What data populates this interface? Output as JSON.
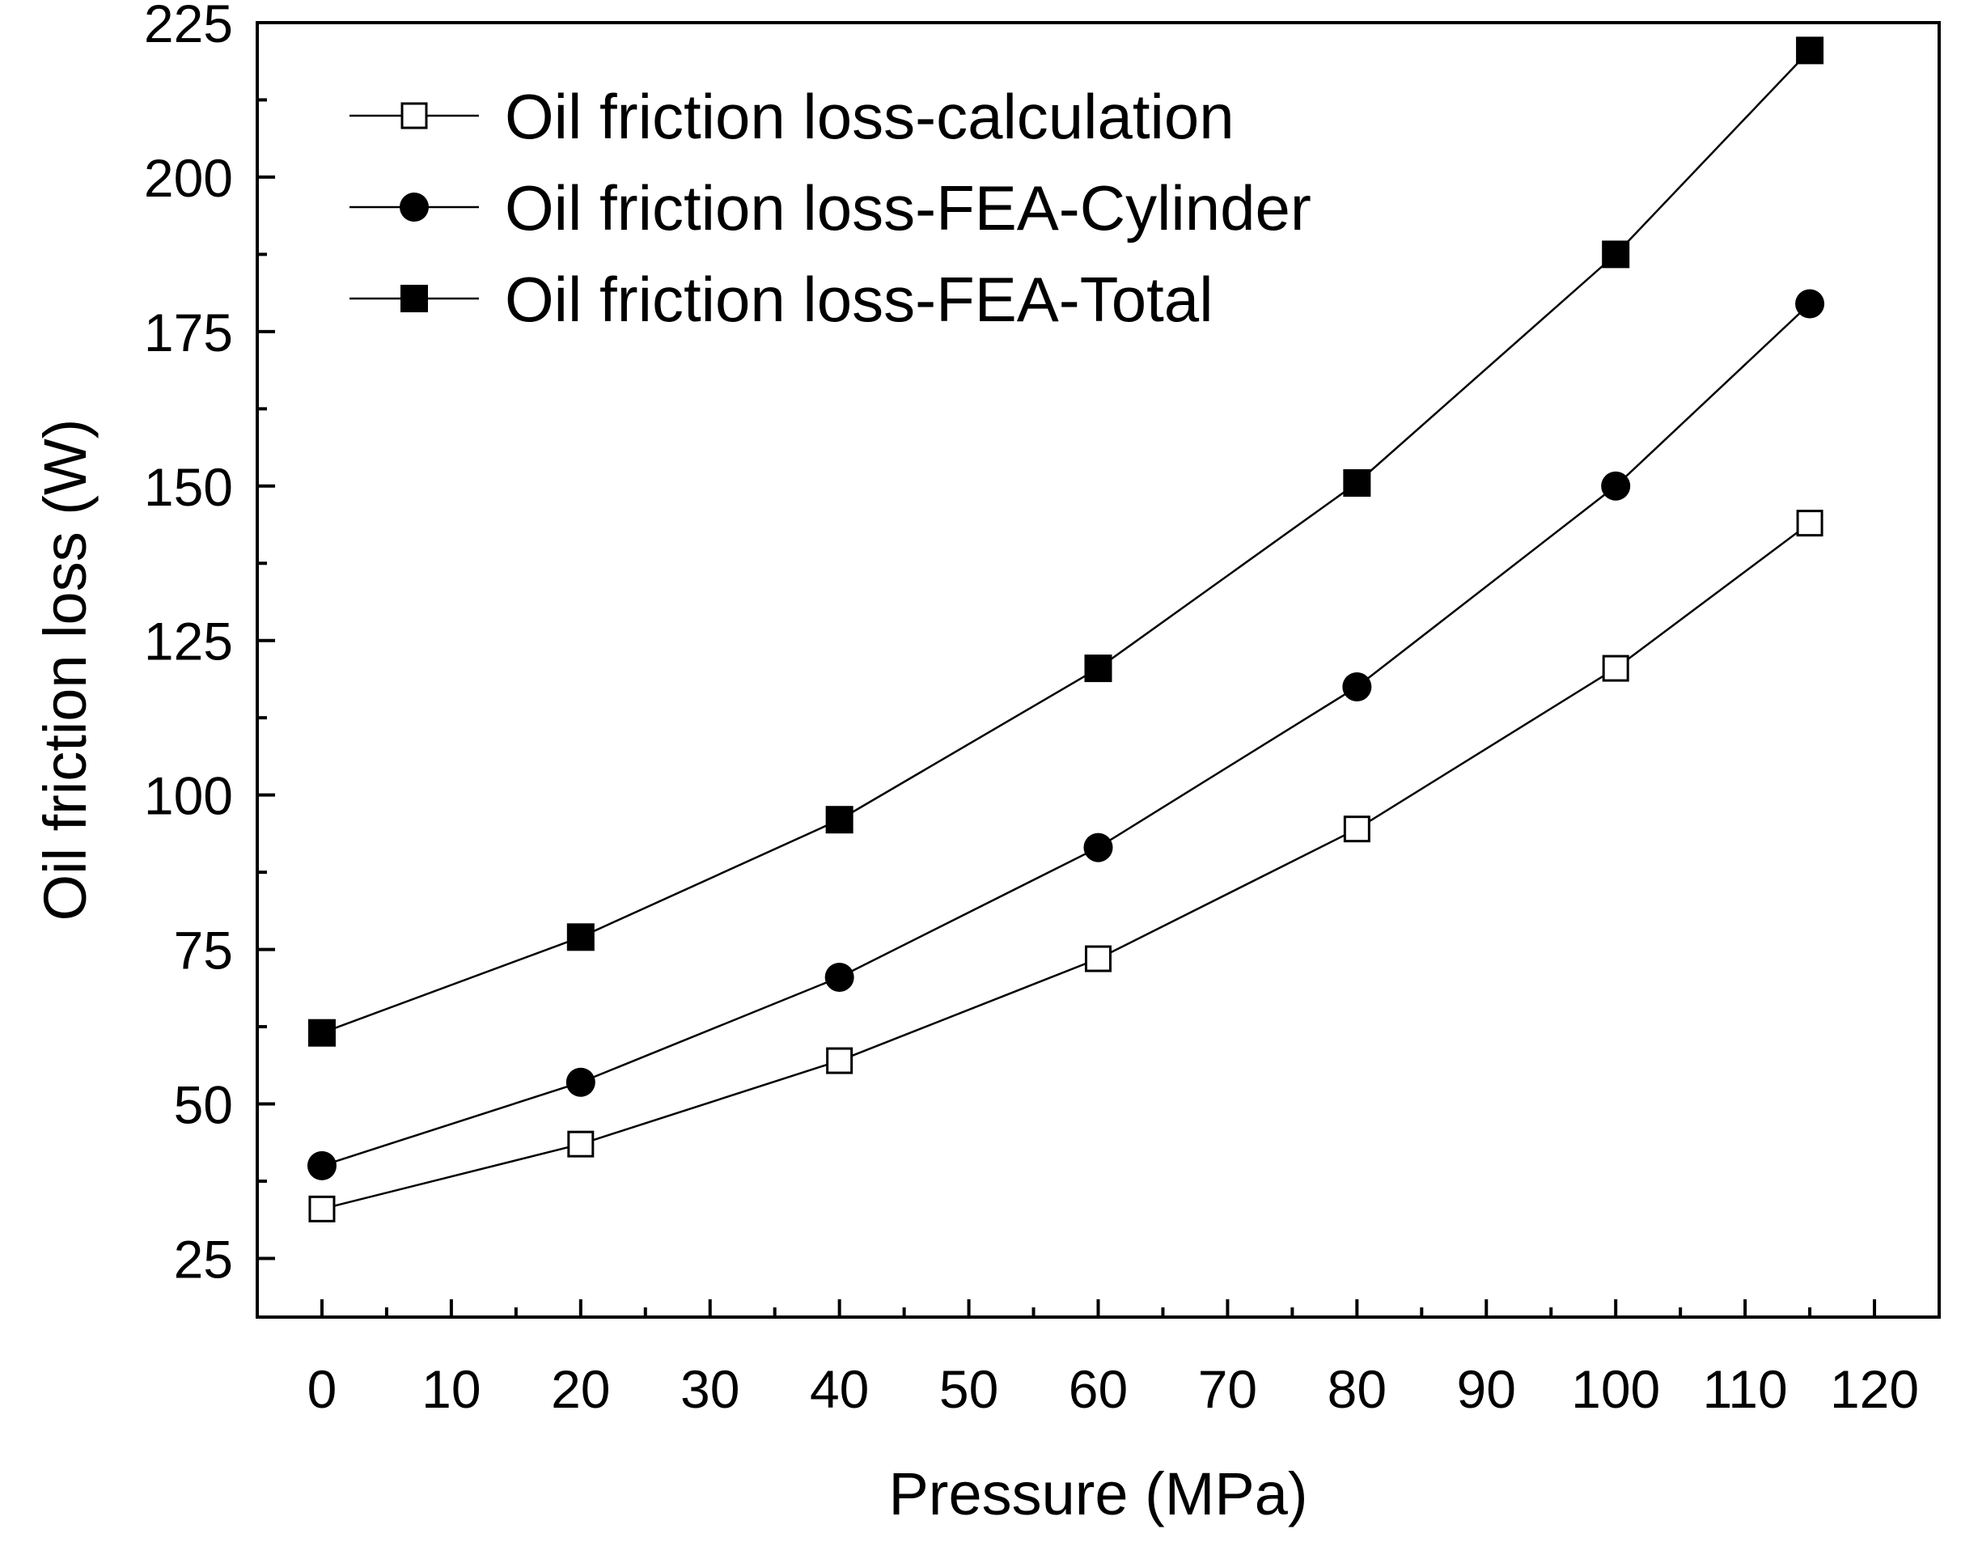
{
  "chart_data": {
    "type": "line",
    "title": "",
    "xlabel": "Pressure (MPa)",
    "ylabel": "Oil friction loss (W)",
    "xlim": [
      -5,
      125
    ],
    "ylim": [
      15.5,
      225
    ],
    "xticks": [
      0,
      10,
      20,
      30,
      40,
      50,
      60,
      70,
      80,
      90,
      100,
      110,
      120
    ],
    "xtick_labels": [
      "0",
      "10",
      "20",
      "30",
      "40",
      "50",
      "60",
      "70",
      "80",
      "90",
      "100",
      "110",
      "120"
    ],
    "yticks": [
      25,
      50,
      75,
      100,
      125,
      150,
      175,
      200,
      225
    ],
    "ytick_labels": [
      "25",
      "50",
      "75",
      "100",
      "125",
      "150",
      "175",
      "200",
      "225"
    ],
    "grid": false,
    "legend_position": "top-left",
    "x": [
      0,
      20,
      40,
      60,
      80,
      100,
      115
    ],
    "series": [
      {
        "name": "Oil friction loss-calculation",
        "marker": "open-square",
        "color": "#000000",
        "values": [
          33,
          43.5,
          57,
          73.5,
          94.5,
          120.5,
          144
        ]
      },
      {
        "name": "Oil friction loss-FEA-Cylinder",
        "marker": "filled-circle",
        "color": "#000000",
        "values": [
          40,
          53.5,
          70.5,
          91.5,
          117.5,
          150,
          179.5
        ]
      },
      {
        "name": "Oil friction loss-FEA-Total",
        "marker": "filled-square",
        "color": "#000000",
        "values": [
          61.5,
          77,
          96,
          120.5,
          150.5,
          187.5,
          220.5
        ]
      }
    ]
  }
}
